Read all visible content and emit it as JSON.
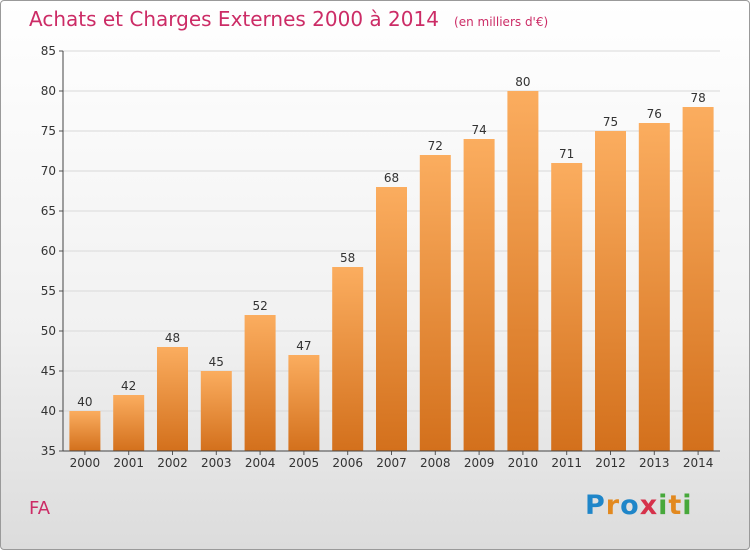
{
  "title": "Achats et Charges Externes 2000 à 2014",
  "unit_note": "(en milliers d'€)",
  "footer_label": "FA",
  "logo_text": "Proxiti",
  "colors": {
    "title": "#cc2c66",
    "bar_top": "#fbad5f",
    "bar_bottom": "#d3701c",
    "grid": "#d9d9d9"
  },
  "chart_data": {
    "type": "bar",
    "categories": [
      "2000",
      "2001",
      "2002",
      "2003",
      "2004",
      "2005",
      "2006",
      "2007",
      "2008",
      "2009",
      "2010",
      "2011",
      "2012",
      "2013",
      "2014"
    ],
    "values": [
      40,
      42,
      48,
      45,
      52,
      47,
      58,
      68,
      72,
      74,
      80,
      71,
      75,
      76,
      78
    ],
    "ylim": [
      35,
      85
    ],
    "yticks": [
      35,
      40,
      45,
      50,
      55,
      60,
      65,
      70,
      75,
      80,
      85
    ],
    "grid": true,
    "data_labels": true
  }
}
